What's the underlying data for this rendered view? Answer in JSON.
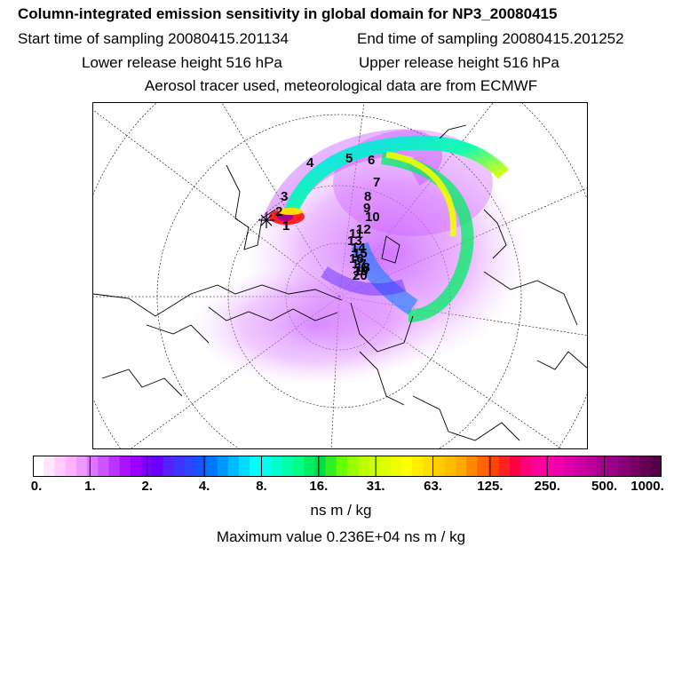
{
  "header": {
    "title": "Column-integrated emission sensitivity in global domain for NP3_20080415",
    "start_label": "Start time of sampling 20080415.201134",
    "end_label": "End time of sampling 20080415.201252",
    "lower_label": "Lower release height  516 hPa",
    "upper_label": "Upper release height  516 hPa",
    "aerosol_label": "Aerosol tracer used, meteorological data are from ECMWF"
  },
  "map": {
    "trajectory_labels": [
      "1",
      "2",
      "3",
      "4",
      "5",
      "6",
      "7",
      "8",
      "9",
      "10",
      "11",
      "12",
      "13",
      "14",
      "15",
      "16",
      "17",
      "18",
      "19",
      "20"
    ]
  },
  "colorbar": {
    "colors": [
      "#ffffff",
      "#ffe6ff",
      "#ffccff",
      "#ffb3ff",
      "#ee99ff",
      "#dd77ff",
      "#cc55ff",
      "#bb33ff",
      "#aa11ff",
      "#9900ff",
      "#7f00ff",
      "#6a00ff",
      "#5522ff",
      "#3f33ff",
      "#2a44ff",
      "#1555ff",
      "#0077ff",
      "#0099ff",
      "#00bbff",
      "#00ddff",
      "#00ffff",
      "#00ffee",
      "#00ffcc",
      "#00ffaa",
      "#00ff88",
      "#00ee66",
      "#00dd44",
      "#33ee22",
      "#66ff00",
      "#99ff00",
      "#bbff00",
      "#ccff00",
      "#ddff00",
      "#eeff00",
      "#ffff00",
      "#ffee00",
      "#ffdd00",
      "#ffcc00",
      "#ffbb00",
      "#ffaa00",
      "#ff8800",
      "#ff6600",
      "#ff4400",
      "#ff2222",
      "#ff0044",
      "#ff0077",
      "#ff0099",
      "#ff00aa",
      "#ee00aa",
      "#dd00aa",
      "#cc00a0",
      "#bb0099",
      "#aa0090",
      "#990088",
      "#880077",
      "#770066",
      "#660055",
      "#550044"
    ],
    "tick_labels": [
      "0.",
      "1.",
      "2.",
      "4.",
      "8.",
      "16.",
      "31.",
      "63.",
      "125.",
      "250.",
      "500.",
      "1000."
    ],
    "units": "ns m / kg"
  },
  "footer": {
    "max_value": "Maximum value  0.236E+04 ns m / kg"
  },
  "colors": {
    "frame": "#000000",
    "background": "#ffffff"
  }
}
